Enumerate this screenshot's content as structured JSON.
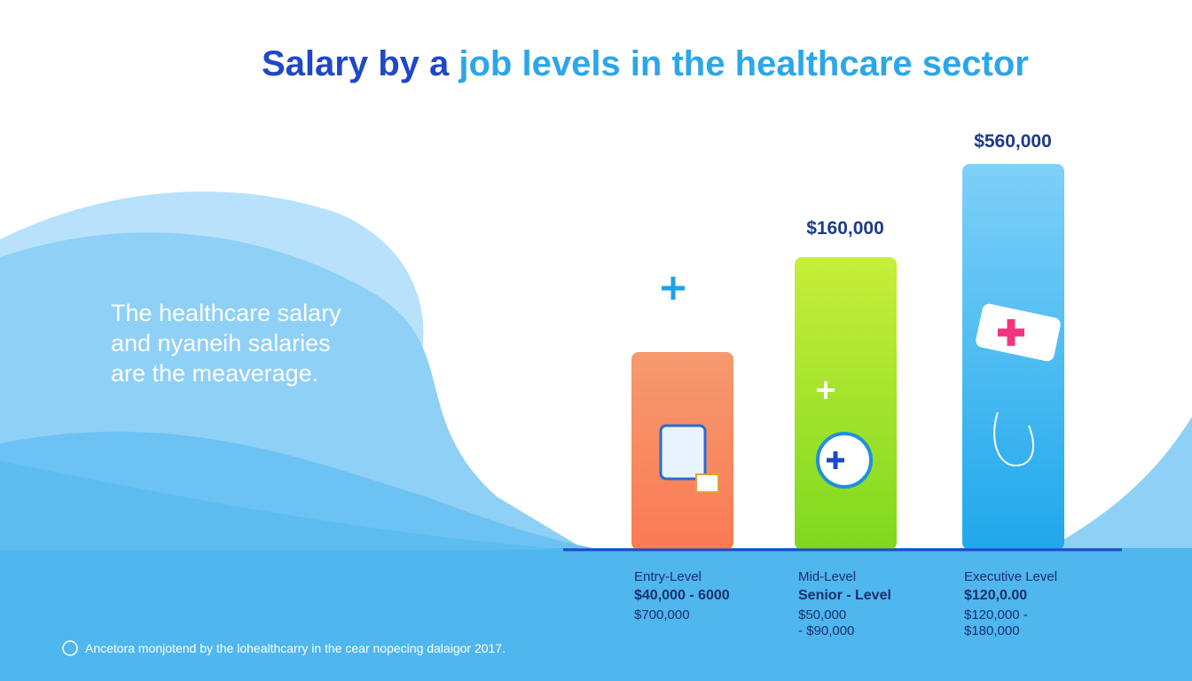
{
  "header": {
    "title": [
      "Salary by a",
      "job levels in the healthcare sector"
    ]
  },
  "intro": {
    "lines": [
      "The healthcare salary",
      "and nyaneih salaries",
      "are the meaverage."
    ]
  },
  "levels": [
    {
      "lines": [
        "Entry-Level",
        "$40,000 - 6000",
        "$700,000"
      ]
    },
    {
      "top_label": "$160,000",
      "lines": [
        "Mid-Level",
        "Senior - Level",
        "$50,000",
        "- $90,000"
      ]
    },
    {
      "top_label": "$560,000",
      "lines": [
        "Executive Level",
        "$120,0.00",
        "$120,000 -",
        "$180,000"
      ]
    }
  ],
  "footnote": "Ancetora monjotend by the lohealthcarry in the cear nopecing dalaigor 2017."
}
